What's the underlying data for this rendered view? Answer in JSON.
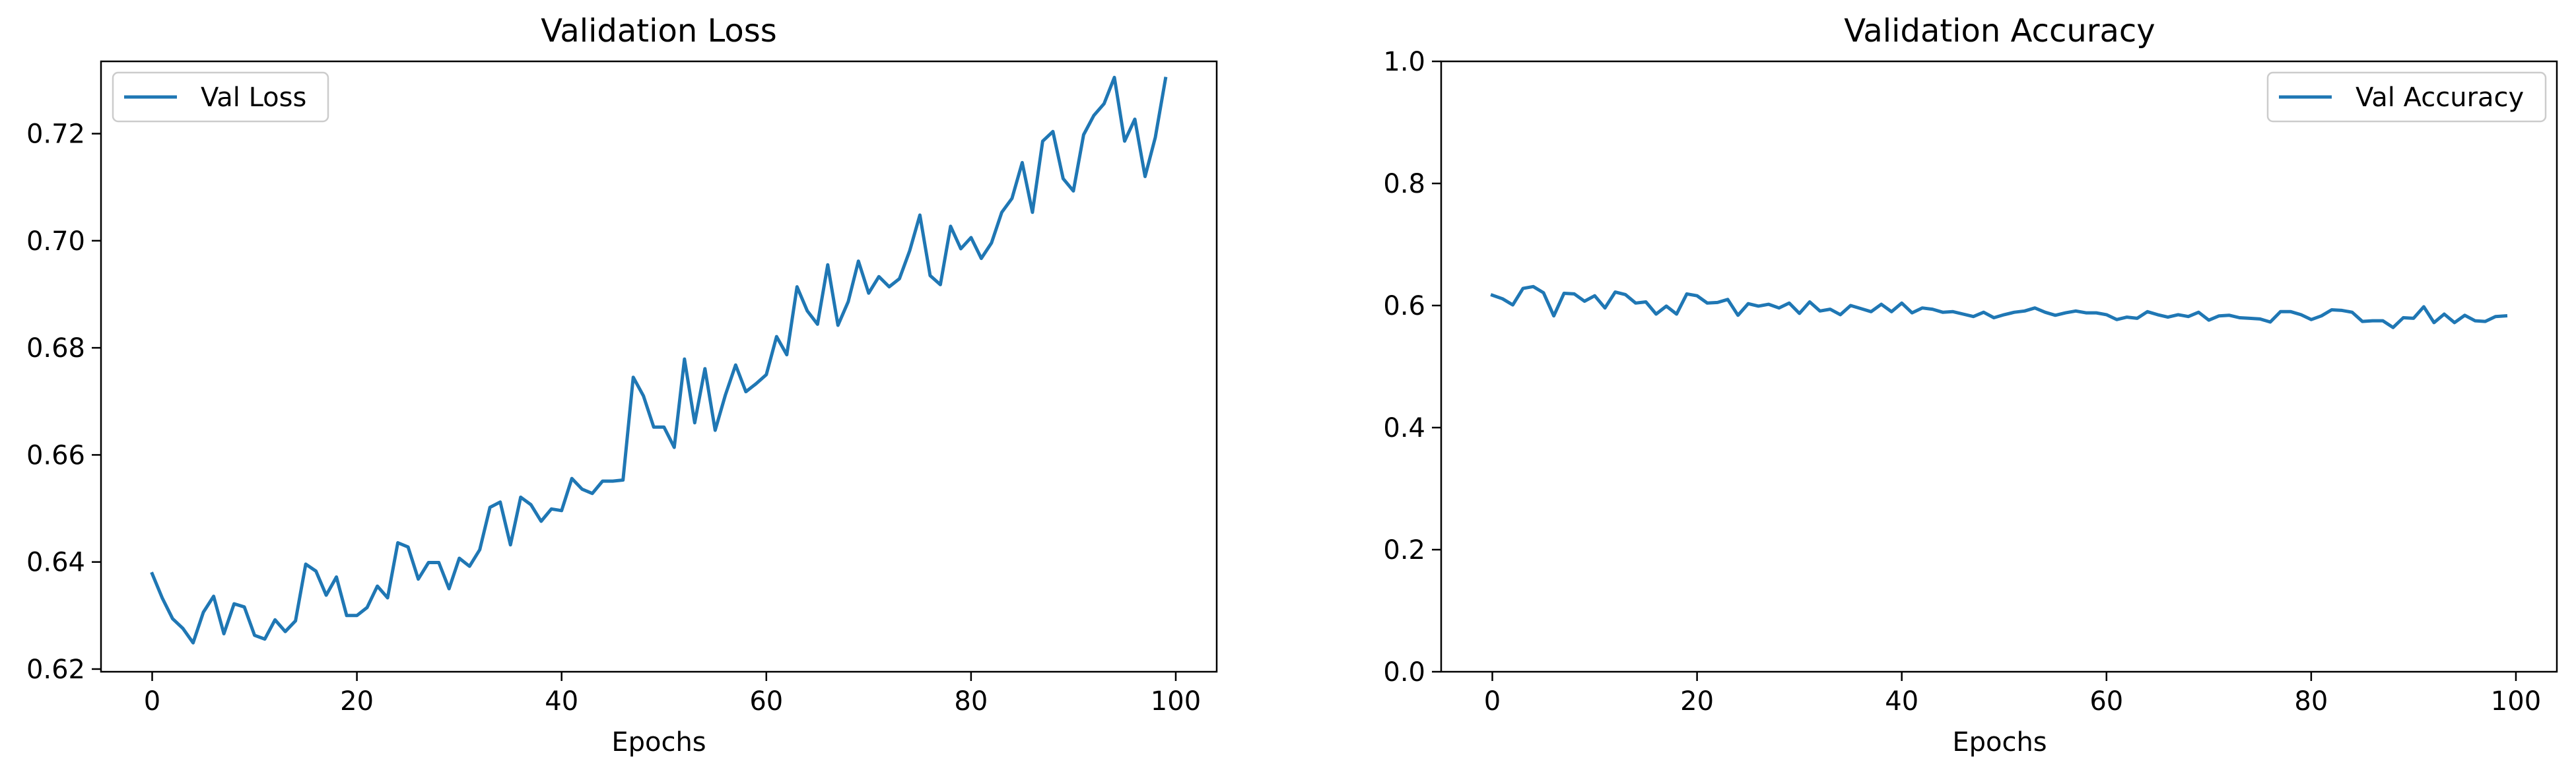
{
  "chart_data": [
    {
      "type": "line",
      "title": "Validation Loss",
      "xlabel": "Epochs",
      "ylabel": "",
      "xlim": [
        -5,
        104
      ],
      "ylim": [
        0.6195,
        0.7335
      ],
      "xticks": [
        0,
        20,
        40,
        60,
        80,
        100
      ],
      "xtick_labels": [
        "0",
        "20",
        "40",
        "60",
        "80",
        "100"
      ],
      "yticks": [
        0.62,
        0.64,
        0.66,
        0.68,
        0.7,
        0.72
      ],
      "ytick_labels": [
        "0.62",
        "0.64",
        "0.66",
        "0.68",
        "0.70",
        "0.72"
      ],
      "legend_position": "upper-left",
      "grid": false,
      "series": [
        {
          "name": "Val Loss",
          "color": "#1f77b4",
          "x": [
            0,
            1,
            2,
            3,
            4,
            5,
            6,
            7,
            8,
            9,
            10,
            11,
            12,
            13,
            14,
            15,
            16,
            17,
            18,
            19,
            20,
            21,
            22,
            23,
            24,
            25,
            26,
            27,
            28,
            29,
            30,
            31,
            32,
            33,
            34,
            35,
            36,
            37,
            38,
            39,
            40,
            41,
            42,
            43,
            44,
            45,
            46,
            47,
            48,
            49,
            50,
            51,
            52,
            53,
            54,
            55,
            56,
            57,
            58,
            59,
            60,
            61,
            62,
            63,
            64,
            65,
            66,
            67,
            68,
            69,
            70,
            71,
            72,
            73,
            74,
            75,
            76,
            77,
            78,
            79,
            80,
            81,
            82,
            83,
            84,
            85,
            86,
            87,
            88,
            89,
            90,
            91,
            92,
            93,
            94,
            95,
            96,
            97,
            98,
            99
          ],
          "values": [
            0.6378,
            0.6332,
            0.6294,
            0.6276,
            0.6249,
            0.6306,
            0.6336,
            0.6266,
            0.6322,
            0.6316,
            0.6263,
            0.6256,
            0.6292,
            0.627,
            0.629,
            0.6396,
            0.6383,
            0.6338,
            0.6372,
            0.63,
            0.63,
            0.6315,
            0.6355,
            0.6333,
            0.6436,
            0.6428,
            0.6368,
            0.6399,
            0.6399,
            0.635,
            0.6407,
            0.6392,
            0.6423,
            0.6502,
            0.6512,
            0.6432,
            0.6521,
            0.6507,
            0.6476,
            0.6499,
            0.6496,
            0.6556,
            0.6536,
            0.6528,
            0.6551,
            0.6551,
            0.6553,
            0.6745,
            0.671,
            0.6652,
            0.6652,
            0.6614,
            0.6779,
            0.666,
            0.6761,
            0.6646,
            0.6712,
            0.6768,
            0.6718,
            0.6733,
            0.675,
            0.6821,
            0.6787,
            0.6914,
            0.6869,
            0.6844,
            0.6955,
            0.6842,
            0.6886,
            0.6962,
            0.6902,
            0.6933,
            0.6914,
            0.6929,
            0.6981,
            0.7048,
            0.6935,
            0.6918,
            0.7027,
            0.6985,
            0.7006,
            0.6967,
            0.6996,
            0.7053,
            0.7079,
            0.7146,
            0.7053,
            0.7186,
            0.7204,
            0.7116,
            0.7093,
            0.7198,
            0.7234,
            0.7256,
            0.7305,
            0.7186,
            0.7227,
            0.712,
            0.7193,
            0.7303
          ]
        }
      ]
    },
    {
      "type": "line",
      "title": "Validation Accuracy",
      "xlabel": "Epochs",
      "ylabel": "",
      "xlim": [
        -5,
        104
      ],
      "ylim": [
        0.0,
        1.0
      ],
      "xticks": [
        0,
        20,
        40,
        60,
        80,
        100
      ],
      "xtick_labels": [
        "0",
        "20",
        "40",
        "60",
        "80",
        "100"
      ],
      "yticks": [
        0.0,
        0.2,
        0.4,
        0.6,
        0.8,
        1.0
      ],
      "ytick_labels": [
        "0.0",
        "0.2",
        "0.4",
        "0.6",
        "0.8",
        "1.0"
      ],
      "legend_position": "upper-right",
      "grid": false,
      "series": [
        {
          "name": "Val Accuracy",
          "color": "#1f77b4",
          "x": [
            0,
            1,
            2,
            3,
            4,
            5,
            6,
            7,
            8,
            9,
            10,
            11,
            12,
            13,
            14,
            15,
            16,
            17,
            18,
            19,
            20,
            21,
            22,
            23,
            24,
            25,
            26,
            27,
            28,
            29,
            30,
            31,
            32,
            33,
            34,
            35,
            36,
            37,
            38,
            39,
            40,
            41,
            42,
            43,
            44,
            45,
            46,
            47,
            48,
            49,
            50,
            51,
            52,
            53,
            54,
            55,
            56,
            57,
            58,
            59,
            60,
            61,
            62,
            63,
            64,
            65,
            66,
            67,
            68,
            69,
            70,
            71,
            72,
            73,
            74,
            75,
            76,
            77,
            78,
            79,
            80,
            81,
            82,
            83,
            84,
            85,
            86,
            87,
            88,
            89,
            90,
            91,
            92,
            93,
            94,
            95,
            96,
            97,
            98,
            99
          ],
          "values": [
            0.617,
            0.611,
            0.601,
            0.628,
            0.631,
            0.621,
            0.583,
            0.62,
            0.619,
            0.607,
            0.616,
            0.596,
            0.622,
            0.618,
            0.604,
            0.606,
            0.586,
            0.599,
            0.586,
            0.619,
            0.616,
            0.604,
            0.605,
            0.61,
            0.584,
            0.603,
            0.599,
            0.602,
            0.596,
            0.604,
            0.587,
            0.606,
            0.591,
            0.594,
            0.585,
            0.6,
            0.595,
            0.59,
            0.602,
            0.59,
            0.604,
            0.588,
            0.596,
            0.594,
            0.589,
            0.59,
            0.586,
            0.582,
            0.589,
            0.58,
            0.585,
            0.589,
            0.591,
            0.596,
            0.589,
            0.584,
            0.588,
            0.591,
            0.588,
            0.588,
            0.585,
            0.577,
            0.581,
            0.579,
            0.59,
            0.585,
            0.581,
            0.585,
            0.582,
            0.589,
            0.576,
            0.583,
            0.584,
            0.58,
            0.579,
            0.578,
            0.573,
            0.59,
            0.59,
            0.585,
            0.577,
            0.583,
            0.593,
            0.592,
            0.589,
            0.574,
            0.575,
            0.575,
            0.564,
            0.58,
            0.579,
            0.598,
            0.572,
            0.586,
            0.572,
            0.584,
            0.575,
            0.574,
            0.582,
            0.583
          ]
        }
      ]
    }
  ]
}
